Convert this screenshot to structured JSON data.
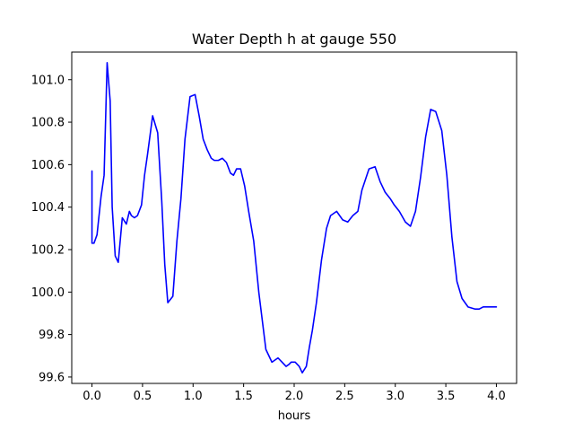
{
  "chart_data": {
    "type": "line",
    "title": "Water Depth h at gauge 550",
    "xlabel": "hours",
    "ylabel": "",
    "xlim": [
      -0.2,
      4.2
    ],
    "ylim": [
      99.57,
      101.13
    ],
    "xticks": [
      0.0,
      0.5,
      1.0,
      1.5,
      2.0,
      2.5,
      3.0,
      3.5,
      4.0
    ],
    "xtick_labels": [
      "0.0",
      "0.5",
      "1.0",
      "1.5",
      "2.0",
      "2.5",
      "3.0",
      "3.5",
      "4.0"
    ],
    "yticks": [
      99.6,
      99.8,
      100.0,
      100.2,
      100.4,
      100.6,
      100.8,
      101.0
    ],
    "ytick_labels": [
      "99.6",
      "99.8",
      "100.0",
      "100.2",
      "100.4",
      "100.6",
      "100.8",
      "101.0"
    ],
    "grid": false,
    "legend": "none",
    "series": [
      {
        "color": "#0000ff",
        "x": [
          0.0,
          0.0,
          0.02,
          0.05,
          0.09,
          0.12,
          0.15,
          0.18,
          0.2,
          0.23,
          0.26,
          0.3,
          0.34,
          0.37,
          0.39,
          0.42,
          0.45,
          0.49,
          0.52,
          0.55,
          0.6,
          0.65,
          0.69,
          0.72,
          0.75,
          0.8,
          0.84,
          0.88,
          0.92,
          0.97,
          1.02,
          1.06,
          1.1,
          1.14,
          1.18,
          1.21,
          1.25,
          1.29,
          1.33,
          1.37,
          1.4,
          1.43,
          1.47,
          1.51,
          1.55,
          1.6,
          1.65,
          1.72,
          1.78,
          1.84,
          1.88,
          1.92,
          1.95,
          1.97,
          2.01,
          2.05,
          2.08,
          2.12,
          2.15,
          2.18,
          2.22,
          2.27,
          2.32,
          2.36,
          2.42,
          2.48,
          2.53,
          2.58,
          2.63,
          2.67,
          2.74,
          2.8,
          2.85,
          2.9,
          2.95,
          2.99,
          3.04,
          3.1,
          3.15,
          3.2,
          3.25,
          3.3,
          3.35,
          3.4,
          3.46,
          3.51,
          3.56,
          3.61,
          3.66,
          3.72,
          3.79,
          3.83,
          3.87,
          3.91,
          3.95,
          4.0
        ],
        "y": [
          100.57,
          100.23,
          100.23,
          100.27,
          100.45,
          100.55,
          101.08,
          100.9,
          100.4,
          100.17,
          100.14,
          100.35,
          100.32,
          100.38,
          100.36,
          100.35,
          100.36,
          100.41,
          100.55,
          100.65,
          100.83,
          100.75,
          100.43,
          100.13,
          99.95,
          99.98,
          100.24,
          100.44,
          100.72,
          100.92,
          100.93,
          100.83,
          100.72,
          100.67,
          100.63,
          100.62,
          100.62,
          100.63,
          100.61,
          100.56,
          100.55,
          100.58,
          100.58,
          100.5,
          100.38,
          100.24,
          100.0,
          99.73,
          99.67,
          99.69,
          99.67,
          99.65,
          99.66,
          99.67,
          99.67,
          99.65,
          99.62,
          99.65,
          99.74,
          99.82,
          99.95,
          100.15,
          100.3,
          100.36,
          100.38,
          100.34,
          100.33,
          100.36,
          100.38,
          100.48,
          100.58,
          100.59,
          100.52,
          100.47,
          100.44,
          100.41,
          100.38,
          100.33,
          100.31,
          100.38,
          100.54,
          100.73,
          100.86,
          100.85,
          100.76,
          100.55,
          100.26,
          100.05,
          99.97,
          99.93,
          99.92,
          99.92,
          99.93,
          99.93,
          99.93,
          99.93
        ]
      }
    ]
  }
}
